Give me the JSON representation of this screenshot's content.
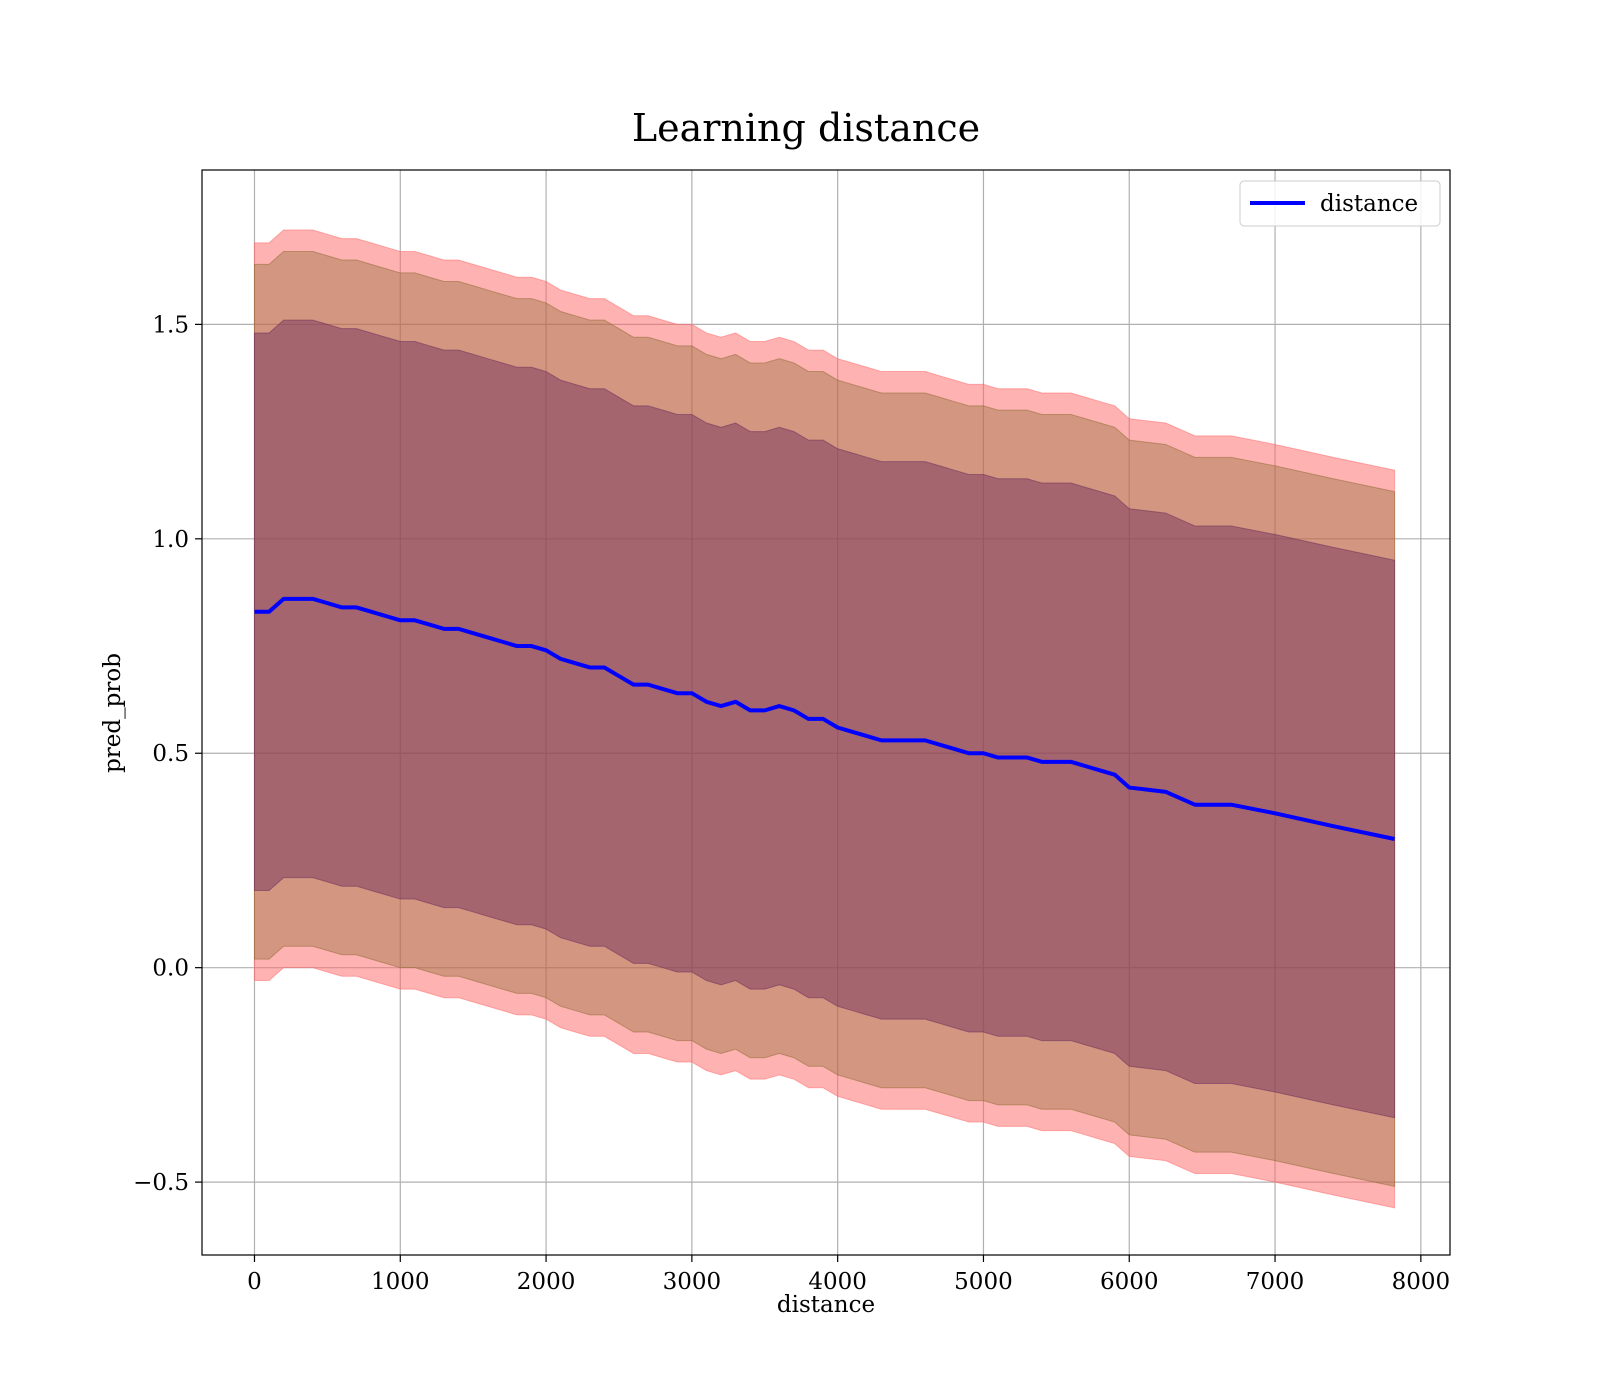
{
  "chart_data": {
    "type": "line",
    "title": "Learning distance",
    "xlabel": "distance",
    "ylabel": "pred_prob",
    "xlim": [
      -360,
      8200
    ],
    "ylim": [
      -0.67,
      1.86
    ],
    "xticks": [
      0,
      1000,
      2000,
      3000,
      4000,
      5000,
      6000,
      7000,
      8000
    ],
    "xtick_labels": [
      "0",
      "1000",
      "2000",
      "3000",
      "4000",
      "5000",
      "6000",
      "7000",
      "8000"
    ],
    "yticks": [
      -0.5,
      0.0,
      0.5,
      1.0,
      1.5
    ],
    "ytick_labels": [
      "−0.5",
      "0.0",
      "0.5",
      "1.0",
      "1.5"
    ],
    "grid": true,
    "legend_position": "top-right",
    "series": [
      {
        "name": "distance",
        "color": "#0000ff",
        "x": [
          0,
          100,
          200,
          300,
          400,
          500,
          600,
          700,
          800,
          900,
          1000,
          1100,
          1200,
          1300,
          1400,
          1500,
          1600,
          1700,
          1800,
          1900,
          2000,
          2100,
          2200,
          2300,
          2400,
          2500,
          2600,
          2700,
          2800,
          2900,
          3000,
          3100,
          3200,
          3300,
          3400,
          3500,
          3600,
          3700,
          3800,
          3900,
          4000,
          4100,
          4200,
          4300,
          4400,
          4500,
          4600,
          4700,
          4800,
          4900,
          5000,
          5100,
          5200,
          5300,
          5400,
          5500,
          5600,
          5700,
          5800,
          5900,
          6000,
          6250,
          6450,
          6700,
          7000,
          7400,
          7820
        ],
        "y": [
          0.83,
          0.83,
          0.86,
          0.86,
          0.86,
          0.85,
          0.84,
          0.84,
          0.83,
          0.82,
          0.81,
          0.81,
          0.8,
          0.79,
          0.79,
          0.78,
          0.77,
          0.76,
          0.75,
          0.75,
          0.74,
          0.72,
          0.71,
          0.7,
          0.7,
          0.68,
          0.66,
          0.66,
          0.65,
          0.64,
          0.64,
          0.62,
          0.61,
          0.62,
          0.6,
          0.6,
          0.61,
          0.6,
          0.58,
          0.58,
          0.56,
          0.55,
          0.54,
          0.53,
          0.53,
          0.53,
          0.53,
          0.52,
          0.51,
          0.5,
          0.5,
          0.49,
          0.49,
          0.49,
          0.48,
          0.48,
          0.48,
          0.47,
          0.46,
          0.45,
          0.42,
          0.41,
          0.38,
          0.38,
          0.36,
          0.33,
          0.3
        ]
      }
    ],
    "bands": [
      {
        "color": "#ff6666",
        "opacity": 0.5,
        "upper_offset": 0.86,
        "lower_offset": 0.86
      },
      {
        "color": "#8b6a30",
        "opacity": 0.38,
        "upper_offset": 0.81,
        "lower_offset": 0.81
      },
      {
        "color": "#6a2a5a",
        "opacity": 0.45,
        "upper_offset": 0.65,
        "lower_offset": 0.65
      }
    ]
  }
}
